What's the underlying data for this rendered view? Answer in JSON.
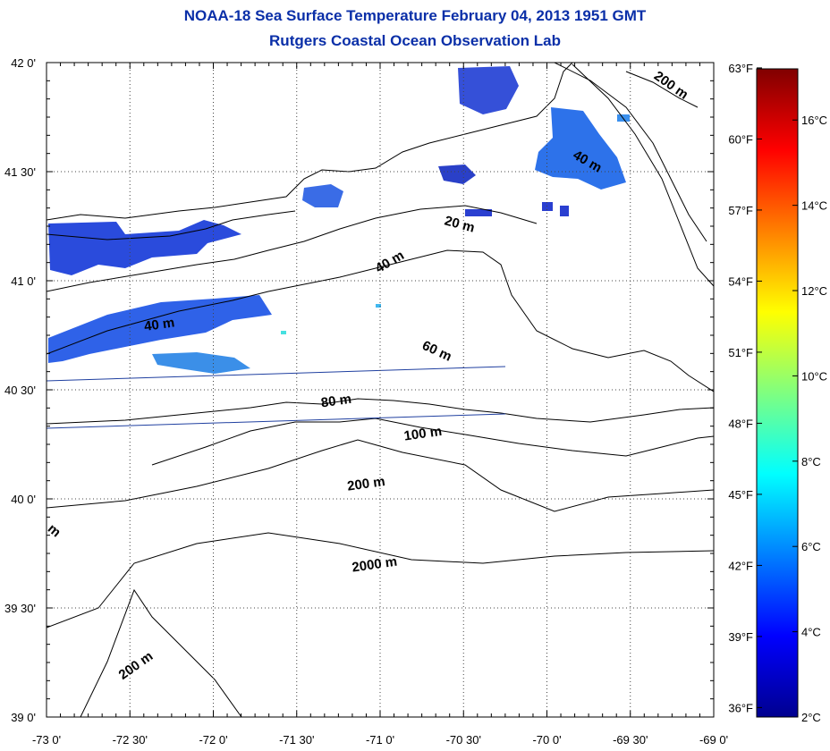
{
  "title": "NOAA-18 Sea Surface Temperature February 04, 2013 1951 GMT",
  "subtitle": "Rutgers Coastal Ocean Observation Lab",
  "map": {
    "lon_range": [
      -73.0,
      -69.0
    ],
    "lat_range": [
      39.0,
      42.0
    ],
    "grid": true,
    "lat_ticks": [
      {
        "value": 42.0,
        "label": "42 0'"
      },
      {
        "value": 41.5,
        "label": "41 30'"
      },
      {
        "value": 41.0,
        "label": "41 0'"
      },
      {
        "value": 40.5,
        "label": "40 30'"
      },
      {
        "value": 40.0,
        "label": "40 0'"
      },
      {
        "value": 39.5,
        "label": "39 30'"
      },
      {
        "value": 39.0,
        "label": "39 0'"
      }
    ],
    "lon_ticks": [
      {
        "value": -73.0,
        "label": "-73 0'"
      },
      {
        "value": -72.5,
        "label": "-72 30'"
      },
      {
        "value": -72.0,
        "label": "-72 0'"
      },
      {
        "value": -71.5,
        "label": "-71 30'"
      },
      {
        "value": -71.0,
        "label": "-71 0'"
      },
      {
        "value": -70.5,
        "label": "-70 30'"
      },
      {
        "value": -70.0,
        "label": "-70 0'"
      },
      {
        "value": -69.5,
        "label": "-69 30'"
      },
      {
        "value": -69.0,
        "label": "-69 0'"
      }
    ],
    "contour_labels": [
      {
        "text": "200 m",
        "lon": -69.27,
        "lat": 41.88
      },
      {
        "text": "40 m",
        "lon": -69.77,
        "lat": 41.53
      },
      {
        "text": "20 m",
        "lon": -70.53,
        "lat": 41.24
      },
      {
        "text": "40 m",
        "lon": -70.93,
        "lat": 41.07
      },
      {
        "text": "40 m",
        "lon": -72.32,
        "lat": 40.78
      },
      {
        "text": "60 m",
        "lon": -70.67,
        "lat": 40.66
      },
      {
        "text": "80 m",
        "lon": -71.26,
        "lat": 40.43
      },
      {
        "text": "100 m",
        "lon": -70.74,
        "lat": 40.28
      },
      {
        "text": "200 m",
        "lon": -71.08,
        "lat": 40.05
      },
      {
        "text": "2000 m",
        "lon": -71.03,
        "lat": 39.68
      },
      {
        "text": "200 m",
        "lon": -72.45,
        "lat": 39.22
      },
      {
        "text": "m",
        "lon": -72.97,
        "lat": 39.84
      }
    ],
    "colors": {
      "land_outline": "#000000",
      "track_line": "#1f3fa0",
      "title": "#0a2fa8"
    }
  },
  "colorbar": {
    "colormap": "jet",
    "celsius_range": [
      2,
      17.2
    ],
    "fahrenheit_labels": [
      {
        "value": 63,
        "label": "63°F"
      },
      {
        "value": 60,
        "label": "60°F"
      },
      {
        "value": 57,
        "label": "57°F"
      },
      {
        "value": 54,
        "label": "54°F"
      },
      {
        "value": 51,
        "label": "51°F"
      },
      {
        "value": 48,
        "label": "48°F"
      },
      {
        "value": 45,
        "label": "45°F"
      },
      {
        "value": 42,
        "label": "42°F"
      },
      {
        "value": 39,
        "label": "39°F"
      },
      {
        "value": 36,
        "label": "36°F"
      }
    ],
    "celsius_labels": [
      {
        "value": 16,
        "label": "16°C"
      },
      {
        "value": 14,
        "label": "14°C"
      },
      {
        "value": 12,
        "label": "12°C"
      },
      {
        "value": 10,
        "label": "10°C"
      },
      {
        "value": 8,
        "label": "8°C"
      },
      {
        "value": 6,
        "label": "6°C"
      },
      {
        "value": 4,
        "label": "4°C"
      },
      {
        "value": 2,
        "label": "2°C"
      }
    ]
  }
}
